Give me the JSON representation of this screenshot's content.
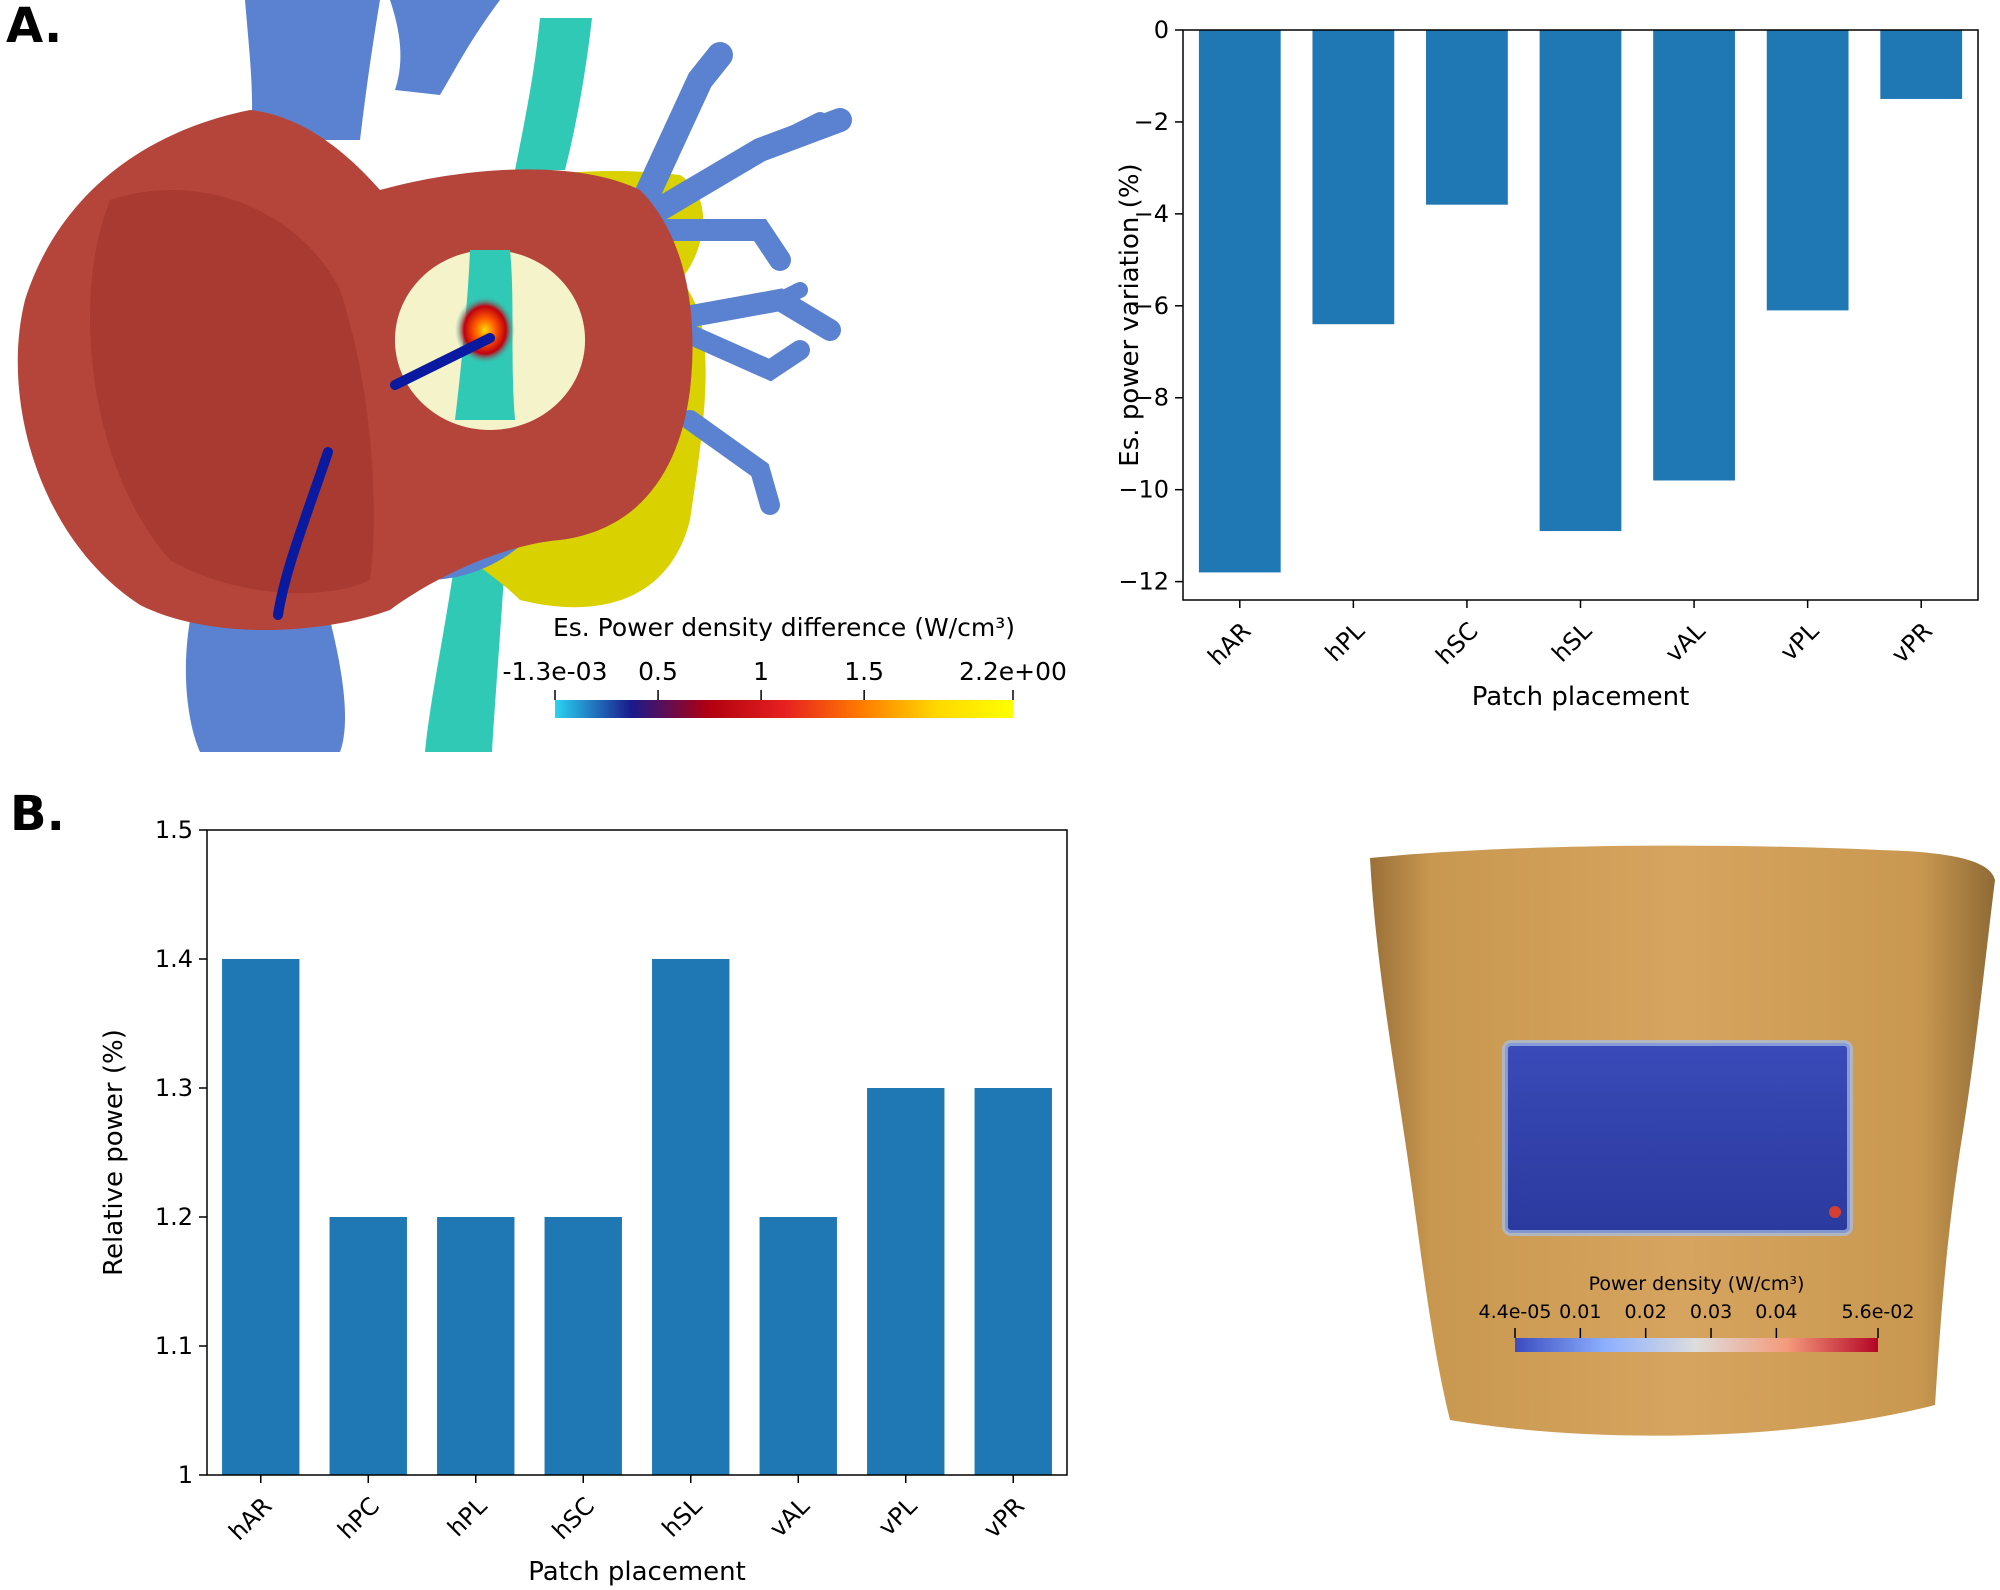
{
  "figure": {
    "label_a": "A.",
    "label_b": "B."
  },
  "heart_render": {
    "colorbar": {
      "title": "Es. Power density difference (W/cm³)",
      "ticks": [
        "-1.3e-03",
        "0.5",
        "1",
        "1.5",
        "2.2e+00"
      ],
      "colors": [
        "#29d3f2",
        "#1a1a8c",
        "#b00010",
        "#e62020",
        "#ff7a00",
        "#ffd800",
        "#ffff00"
      ]
    },
    "colors": {
      "heart_tissue": "#b5453b",
      "vessels": "#5b82d0",
      "esophagus": "#2fc9b6",
      "lung_surface": "#d9d100",
      "catheter": "#0a1aa0"
    }
  },
  "torso_render": {
    "colorbar": {
      "title": "Power density  (W/cm³)",
      "ticks": [
        "4.4e-05",
        "0.01",
        "0.02",
        "0.03",
        "0.04",
        "5.6e-02"
      ],
      "colors": [
        "#3b4cc0",
        "#8db0fe",
        "#dddddd",
        "#f49a7b",
        "#b40426"
      ]
    },
    "colors": {
      "skin": "#d4a05c",
      "patch": "#3040b0"
    }
  },
  "chart_data": [
    {
      "type": "bar",
      "categories": [
        "hAR",
        "hPL",
        "hSC",
        "hSL",
        "vAL",
        "vPL",
        "vPR"
      ],
      "values": [
        -11.8,
        -6.4,
        -3.8,
        -10.9,
        -9.8,
        -6.1,
        -1.5
      ],
      "xlabel": "Patch placement",
      "ylabel": "Es. power variation (%)",
      "ylim": [
        -12.4,
        0
      ],
      "yticks": [
        0,
        -2,
        -4,
        -6,
        -8,
        -10,
        -12
      ],
      "ytick_labels": [
        "0",
        "−2",
        "−4",
        "−6",
        "−8",
        "−10",
        "−12"
      ],
      "grid": false,
      "color": "#1f77b4"
    },
    {
      "type": "bar",
      "categories": [
        "hAR",
        "hPC",
        "hPL",
        "hSC",
        "hSL",
        "vAL",
        "vPL",
        "vPR"
      ],
      "values": [
        1.4,
        1.2,
        1.2,
        1.2,
        1.4,
        1.2,
        1.3,
        1.3
      ],
      "xlabel": "Patch placement",
      "ylabel": "Relative power (%)",
      "ylim": [
        1.0,
        1.5
      ],
      "yticks": [
        1.0,
        1.1,
        1.2,
        1.3,
        1.4,
        1.5
      ],
      "ytick_labels": [
        "1",
        "1.1",
        "1.2",
        "1.3",
        "1.4",
        "1.5"
      ],
      "grid": false,
      "color": "#1f77b4"
    }
  ]
}
